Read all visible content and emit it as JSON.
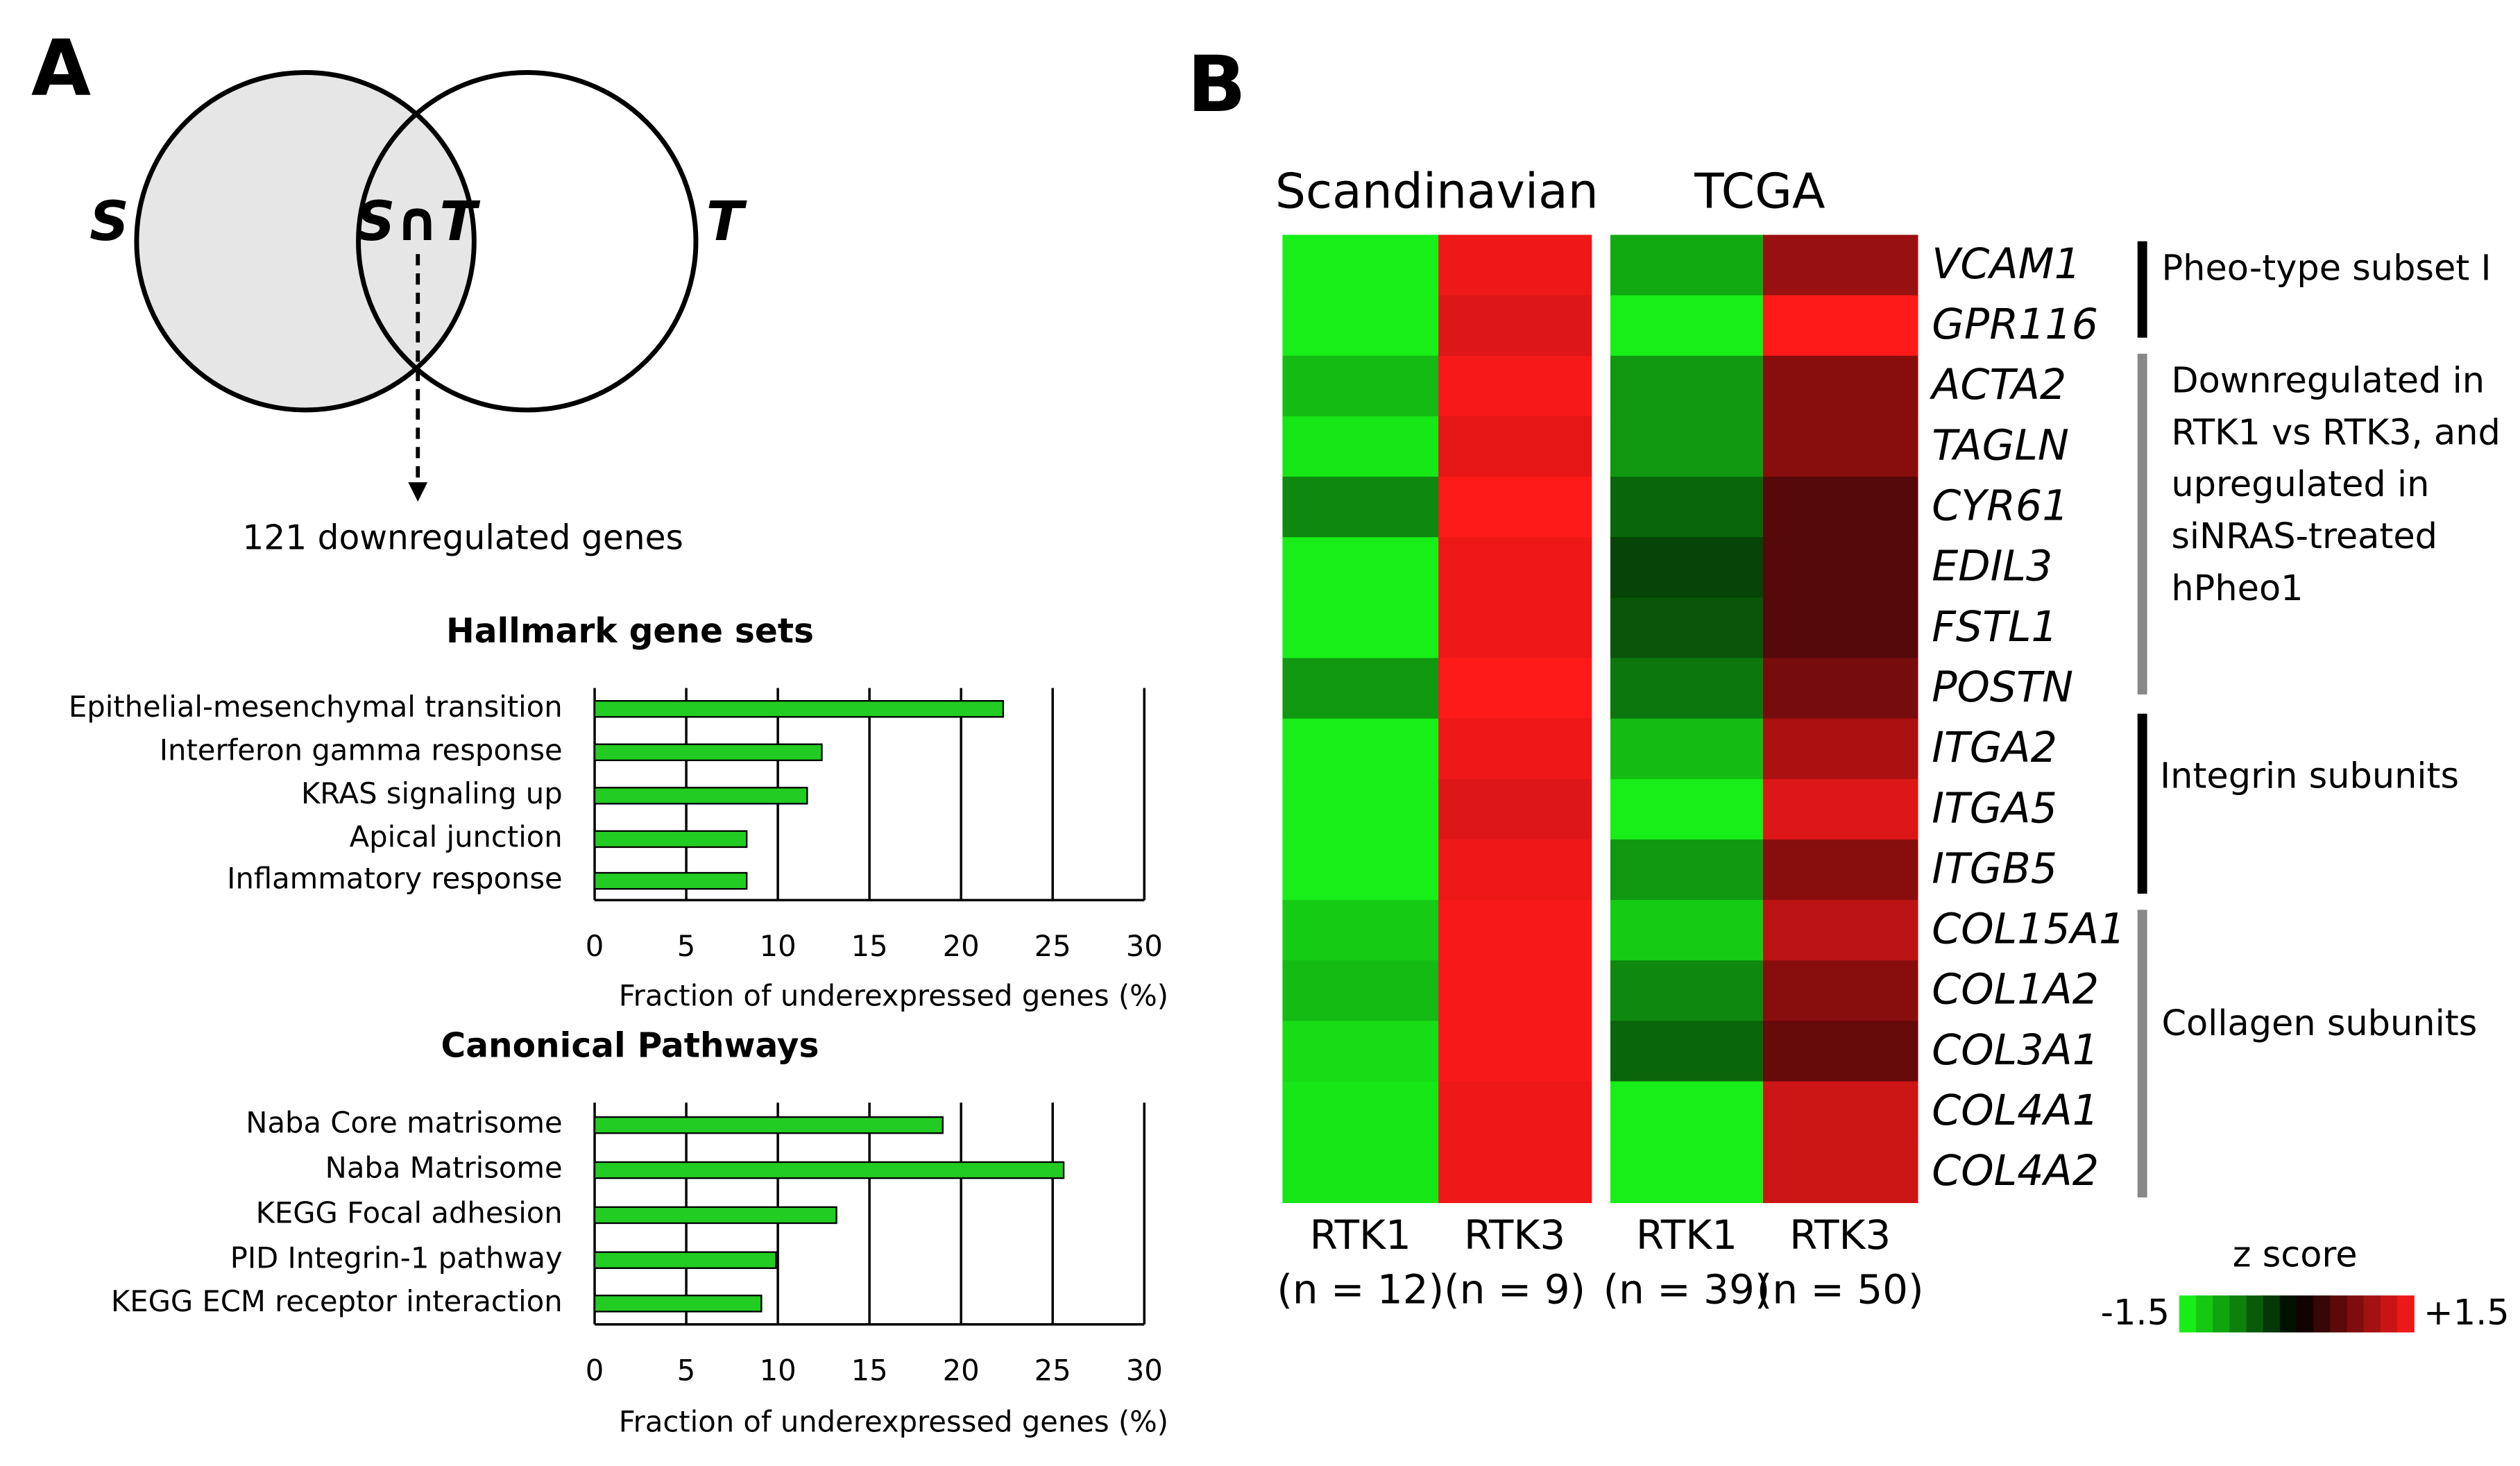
{
  "panel_labels": [
    "A",
    "B"
  ],
  "venn": {
    "left": "S",
    "intersection": "S∩T",
    "right": "T",
    "caption": "121 downregulated genes"
  },
  "chart_data": [
    {
      "type": "hbar",
      "title": "Hallmark gene sets",
      "categories": [
        "Epithelial-mesenchymal transition",
        "Interferon gamma response",
        "KRAS signaling up",
        "Apical junction",
        "Inflammatory response"
      ],
      "values": [
        22.3,
        12.4,
        11.6,
        8.3,
        8.3
      ],
      "color": "#22cc22",
      "xlim": [
        0,
        30
      ],
      "xticks": [
        0,
        5,
        10,
        15,
        20,
        25,
        30
      ],
      "grid": true,
      "xlabel": "Fraction of underexpressed genes (%)"
    },
    {
      "type": "hbar",
      "title": "Canonical Pathways",
      "categories": [
        "Naba Core matrisome",
        "Naba Matrisome",
        "KEGG Focal adhesion",
        "PID Integrin-1 pathway",
        "KEGG ECM receptor interaction"
      ],
      "values": [
        19,
        25.6,
        13.2,
        9.9,
        9.1
      ],
      "color": "#22cc22",
      "xlim": [
        0,
        30
      ],
      "xticks": [
        0,
        5,
        10,
        15,
        20,
        25,
        30
      ],
      "grid": true,
      "xlabel": "Fraction of underexpressed genes (%)"
    },
    {
      "type": "heatmap",
      "column_groups": [
        "Scandinavian",
        "TCGA"
      ],
      "categories": [
        "VCAM1",
        "GPR116",
        "ACTA2",
        "TAGLN",
        "CYR61",
        "EDIL3",
        "FSTL1",
        "POSTN",
        "ITGA2",
        "ITGA5",
        "ITGB5",
        "COL15A1",
        "COL1A2",
        "COL3A1",
        "COL4A1",
        "COL4A2"
      ],
      "series": [
        {
          "name": "RTK1",
          "sample_label": "(n = 12)",
          "values": [
            -1.4,
            -1.4,
            -1.1,
            -1.35,
            -0.8,
            -1.4,
            -1.4,
            -0.9,
            -1.4,
            -1.4,
            -1.4,
            -1.2,
            -1.1,
            -1.3,
            -1.35,
            -1.35
          ]
        },
        {
          "name": "RTK3",
          "sample_label": "(n = 9)",
          "values": [
            1.4,
            1.3,
            1.45,
            1.35,
            1.5,
            1.4,
            1.4,
            1.5,
            1.4,
            1.3,
            1.4,
            1.45,
            1.45,
            1.45,
            1.4,
            1.4
          ]
        },
        {
          "name": "RTK1",
          "sample_label": "(n = 39)",
          "values": [
            -1.0,
            -1.4,
            -0.9,
            -0.9,
            -0.6,
            -0.4,
            -0.5,
            -0.7,
            -1.1,
            -1.4,
            -0.9,
            -1.2,
            -0.8,
            -0.6,
            -1.4,
            -1.4
          ]
        },
        {
          "name": "RTK3",
          "sample_label": "(n = 50)",
          "values": [
            0.9,
            1.5,
            0.8,
            0.8,
            0.5,
            0.5,
            0.5,
            0.7,
            1.0,
            1.3,
            0.8,
            1.1,
            0.8,
            0.6,
            1.2,
            1.2
          ]
        }
      ],
      "colorscale": [
        "#1aff1a",
        "#000000",
        "#ff1a1a"
      ],
      "zlim": [
        -1.5,
        1.5
      ],
      "colorbar": {
        "title": "z score",
        "ticks": [
          {
            "value": -1.5,
            "label": "-1.5"
          },
          {
            "value": 1.5,
            "label": "+1.5"
          }
        ]
      },
      "annotations": [
        [
          "Pheo-type subset I"
        ],
        [
          "Downregulated in",
          "RTK1 vs RTK3, and",
          "upregulated in",
          "siNRAS-treated",
          "hPheo1"
        ],
        [
          "Integrin subunits"
        ],
        [
          "Collagen subunits"
        ]
      ]
    }
  ]
}
